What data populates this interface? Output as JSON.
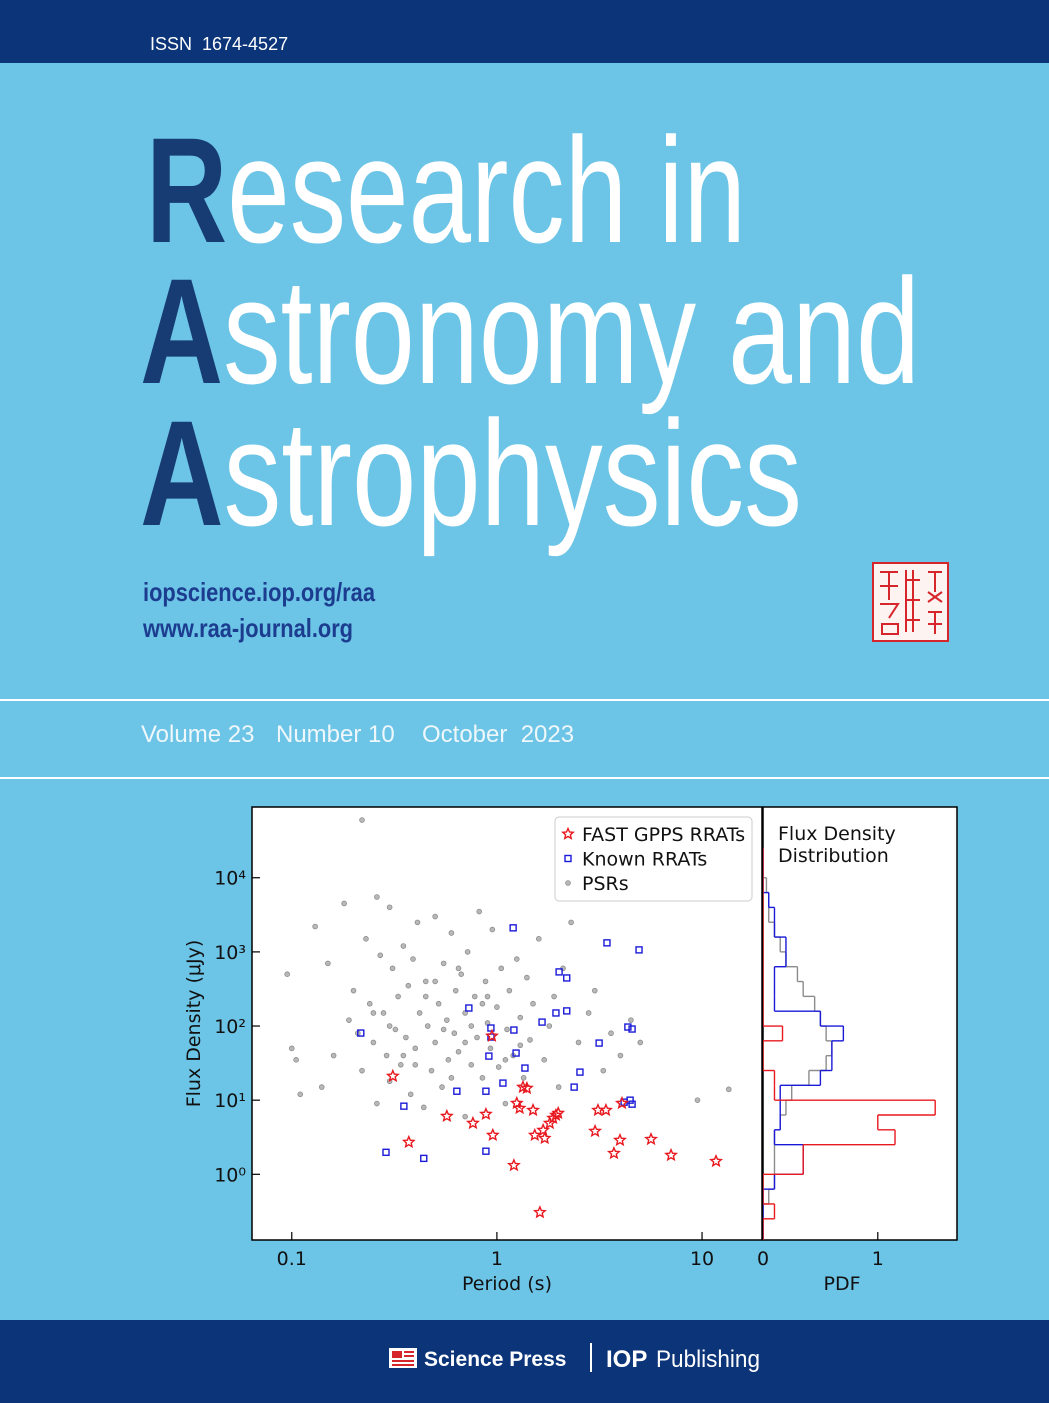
{
  "header": {
    "issn": "ISSN  1674-4527"
  },
  "title": {
    "lines": [
      {
        "initial": "R",
        "rest": "esearch in"
      },
      {
        "initial": "A",
        "rest": "stronomy and"
      },
      {
        "initial": "A",
        "rest": "strophysics"
      }
    ]
  },
  "urls": [
    "iopscience.iop.org/raa",
    "www.raa-journal.org"
  ],
  "issue": {
    "volume": "Volume 23",
    "number": "Number 10",
    "date": "October  2023"
  },
  "chart_data": [
    {
      "type": "scatter",
      "xlabel": "Period (s)",
      "ylabel": "Flux Density (μJy)",
      "xscale": "log",
      "yscale": "log",
      "xlim": [
        0.064,
        19.6
      ],
      "ylim": [
        0.13,
        90000
      ],
      "xticks": [
        0.1,
        1,
        10
      ],
      "yticks": [
        {
          "value": 1,
          "label": "10⁰"
        },
        {
          "value": 10,
          "label": "10¹"
        },
        {
          "value": 100,
          "label": "10²"
        },
        {
          "value": 1000,
          "label": "10³"
        },
        {
          "value": 10000,
          "label": "10⁴"
        }
      ],
      "legend": "upper right",
      "series": [
        {
          "name": "FAST GPPS RRATs",
          "color": "#e8191f",
          "marker": "star",
          "x": [
            0.311,
            0.372,
            0.57,
            0.764,
            0.884,
            0.955,
            0.946,
            1.21,
            1.25,
            1.29,
            1.34,
            1.4,
            1.5,
            1.53,
            1.62,
            1.68,
            1.71,
            1.81,
            1.88,
            1.94,
            1.99,
            3.01,
            3.11,
            3.4,
            3.72,
            3.98,
            4.07,
            5.64,
            7.06,
            11.7
          ],
          "values": [
            21.1,
            2.71,
            6.08,
            4.89,
            6.47,
            3.37,
            73.3,
            1.32,
            9.11,
            7.8,
            15,
            14.5,
            7.33,
            3.37,
            0.306,
            3.93,
            3.06,
            4.89,
            5.71,
            6.27,
            6.67,
            3.81,
            7.33,
            7.33,
            1.92,
            2.88,
            9.11,
            2.97,
            1.81,
            1.5
          ]
        },
        {
          "name": "Known RRATs",
          "color": "#1a1ad8",
          "marker": "square",
          "x": [
            0.288,
            0.44,
            0.217,
            0.352,
            0.638,
            0.73,
            0.884,
            0.884,
            0.935,
            0.935,
            0.914,
            1.07,
            1.2,
            1.21,
            1.24,
            1.37,
            1.66,
            1.94,
            2.01,
            2.19,
            2.19,
            2.38,
            2.54,
            3.15,
            3.44,
            4.35,
            4.56,
            4.93,
            4.17,
            4.46,
            4.56
          ],
          "values": [
            1.98,
            1.64,
            80.4,
            8.3,
            13.2,
            175,
            13.2,
            2.05,
            94,
            71,
            39.3,
            17,
            2110,
            88.3,
            43.2,
            27.1,
            113,
            150,
            537,
            445,
            160,
            15,
            23.9,
            58.9,
            1324,
            96.9,
            91.1,
            1064,
            9.4,
            10,
            8.83
          ]
        },
        {
          "name": "PSRs",
          "color": "#8c8c8c",
          "marker": "circle",
          "x": [
            0.095,
            0.1,
            0.105,
            0.11,
            0.13,
            0.14,
            0.15,
            0.16,
            0.18,
            0.19,
            0.2,
            0.21,
            0.22,
            0.22,
            0.23,
            0.24,
            0.25,
            0.26,
            0.26,
            0.27,
            0.28,
            0.29,
            0.3,
            0.3,
            0.31,
            0.32,
            0.33,
            0.34,
            0.35,
            0.36,
            0.37,
            0.38,
            0.39,
            0.4,
            0.41,
            0.42,
            0.44,
            0.45,
            0.46,
            0.48,
            0.5,
            0.5,
            0.52,
            0.54,
            0.55,
            0.57,
            0.58,
            0.6,
            0.62,
            0.63,
            0.65,
            0.67,
            0.7,
            0.7,
            0.72,
            0.75,
            0.78,
            0.8,
            0.82,
            0.85,
            0.88,
            0.9,
            0.93,
            0.95,
            1.0,
            1.02,
            1.05,
            1.1,
            1.12,
            1.15,
            1.2,
            1.25,
            1.3,
            1.35,
            1.4,
            1.45,
            1.5,
            1.6,
            1.7,
            1.8,
            1.9,
            2.0,
            2.1,
            2.3,
            2.5,
            2.8,
            3.0,
            3.3,
            3.6,
            4.0,
            4.5,
            5.0,
            9.5,
            13.5,
            0.35,
            0.45,
            0.55,
            0.65,
            0.75,
            0.85,
            0.6,
            0.4,
            0.3,
            0.25,
            0.5,
            0.7,
            0.9,
            1.1,
            1.3
          ],
          "values": [
            500,
            50,
            35,
            12,
            2200,
            15,
            700,
            40,
            4500,
            120,
            300,
            80,
            60000,
            25,
            1500,
            200,
            60,
            5500,
            9,
            900,
            150,
            40,
            4000,
            18,
            600,
            90,
            250,
            30,
            1200,
            70,
            350,
            12,
            800,
            50,
            2500,
            150,
            8,
            400,
            100,
            25,
            3000,
            60,
            200,
            15,
            700,
            120,
            35,
            1800,
            80,
            300,
            45,
            500,
            6,
            150,
            1000,
            30,
            250,
            70,
            3500,
            20,
            400,
            110,
            50,
            2000,
            180,
            28,
            600,
            9,
            90,
            300,
            40,
            800,
            130,
            20,
            450,
            65,
            200,
            1500,
            35,
            100,
            250,
            15,
            600,
            2500,
            60,
            150,
            300,
            25,
            80,
            40,
            120,
            60,
            10,
            14,
            40,
            250,
            90,
            600,
            100,
            200,
            20,
            30,
            100,
            150,
            400,
            60,
            250,
            35,
            55
          ]
        }
      ]
    },
    {
      "type": "histogram",
      "orientation": "horizontal",
      "xlabel": "PDF",
      "yscale": "log",
      "xlim": [
        0,
        1.69
      ],
      "ylim": [
        0.13,
        90000
      ],
      "xticks": [
        0,
        1
      ],
      "annotation": [
        "Flux Density",
        "Distribution"
      ],
      "bins": [
        0.1,
        0.1585,
        0.2512,
        0.3981,
        0.631,
        1,
        1.585,
        2.512,
        3.981,
        6.31,
        10,
        15.85,
        25.12,
        39.81,
        63.1,
        100,
        158.5,
        251.2,
        398.1,
        631,
        1000,
        1585,
        2512,
        3981,
        6310,
        10000,
        15850,
        25120
      ],
      "series": [
        {
          "color": "#e8191f",
          "values": [
            0,
            0,
            0.1,
            0,
            0,
            0.35,
            0.35,
            1.15,
            1,
            1.5,
            0.1,
            0.1,
            0,
            0,
            0.17,
            0,
            0,
            0,
            0,
            0,
            0,
            0,
            0,
            0,
            0,
            0,
            0
          ]
        },
        {
          "color": "#1a1ad8",
          "values": [
            0,
            0,
            0,
            0,
            0.1,
            0.35,
            0.35,
            0.1,
            0.15,
            0.15,
            0.15,
            0.5,
            0.6,
            0.6,
            0.7,
            0.5,
            0.1,
            0.1,
            0.1,
            0.2,
            0.2,
            0.1,
            0.1,
            0.05,
            0,
            0,
            0
          ]
        },
        {
          "color": "#8c8c8c",
          "values": [
            0,
            0,
            0,
            0.05,
            0.1,
            0.1,
            0.1,
            0.1,
            0.15,
            0.2,
            0.25,
            0.4,
            0.55,
            0.6,
            0.55,
            0.5,
            0.45,
            0.35,
            0.3,
            0.2,
            0.15,
            0.1,
            0.05,
            0.05,
            0.03,
            0,
            0
          ]
        }
      ]
    }
  ],
  "footer": {
    "publisher1": "Science Press",
    "publisher2_bold": "IOP",
    "publisher2_rest": "Publishing"
  }
}
